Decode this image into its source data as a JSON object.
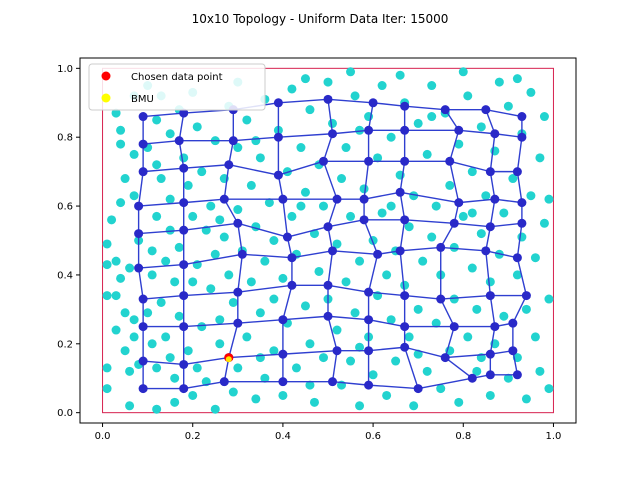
{
  "chart_data": {
    "type": "scatter",
    "title": "10x10 Topology - Uniform Data Iter: 15000",
    "xlabel": "",
    "ylabel": "",
    "xlim": [
      -0.05,
      1.05
    ],
    "ylim": [
      -0.03,
      1.03
    ],
    "x_ticks": [
      "0.0",
      "0.2",
      "0.4",
      "0.6",
      "0.8",
      "1.0"
    ],
    "y_ticks": [
      "0.0",
      "0.2",
      "0.4",
      "0.6",
      "0.8",
      "1.0"
    ],
    "grid": false,
    "legend_position": "top-left",
    "legend": [
      {
        "label": "Chosen data point",
        "color": "#ff0000"
      },
      {
        "label": "BMU",
        "color": "#ffff00"
      }
    ],
    "colors": {
      "data_points": "#22d3cf",
      "neurons": "#2929c8",
      "edges": "#2f3fd0",
      "boundary": "#d6204f",
      "chosen": "#ff0000",
      "bmu": "#ffff00"
    },
    "data_boundary": {
      "x": [
        0,
        1
      ],
      "y": [
        0,
        1
      ]
    },
    "chosen_point": [
      0.28,
      0.16
    ],
    "bmu_point": [
      0.28,
      0.155
    ],
    "neuron_grid": [
      [
        [
          0.09,
          0.07
        ],
        [
          0.18,
          0.07
        ],
        [
          0.27,
          0.09
        ],
        [
          0.4,
          0.09
        ],
        [
          0.51,
          0.09
        ],
        [
          0.59,
          0.08
        ],
        [
          0.7,
          0.07
        ],
        [
          0.82,
          0.1
        ],
        [
          0.86,
          0.11
        ],
        [
          0.92,
          0.11
        ]
      ],
      [
        [
          0.09,
          0.15
        ],
        [
          0.18,
          0.14
        ],
        [
          0.28,
          0.16
        ],
        [
          0.4,
          0.17
        ],
        [
          0.52,
          0.18
        ],
        [
          0.59,
          0.18
        ],
        [
          0.67,
          0.19
        ],
        [
          0.76,
          0.16
        ],
        [
          0.86,
          0.17
        ],
        [
          0.91,
          0.18
        ]
      ],
      [
        [
          0.09,
          0.25
        ],
        [
          0.18,
          0.25
        ],
        [
          0.3,
          0.26
        ],
        [
          0.4,
          0.27
        ],
        [
          0.5,
          0.28
        ],
        [
          0.59,
          0.27
        ],
        [
          0.67,
          0.25
        ],
        [
          0.78,
          0.25
        ],
        [
          0.87,
          0.25
        ],
        [
          0.91,
          0.26
        ]
      ],
      [
        [
          0.09,
          0.33
        ],
        [
          0.18,
          0.34
        ],
        [
          0.3,
          0.35
        ],
        [
          0.42,
          0.37
        ],
        [
          0.5,
          0.37
        ],
        [
          0.59,
          0.35
        ],
        [
          0.67,
          0.34
        ],
        [
          0.75,
          0.33
        ],
        [
          0.86,
          0.34
        ],
        [
          0.94,
          0.34
        ]
      ],
      [
        [
          0.08,
          0.42
        ],
        [
          0.18,
          0.43
        ],
        [
          0.31,
          0.46
        ],
        [
          0.42,
          0.45
        ],
        [
          0.51,
          0.47
        ],
        [
          0.61,
          0.46
        ],
        [
          0.66,
          0.47
        ],
        [
          0.75,
          0.48
        ],
        [
          0.85,
          0.47
        ],
        [
          0.92,
          0.45
        ]
      ],
      [
        [
          0.08,
          0.52
        ],
        [
          0.18,
          0.53
        ],
        [
          0.3,
          0.55
        ],
        [
          0.41,
          0.51
        ],
        [
          0.5,
          0.54
        ],
        [
          0.58,
          0.56
        ],
        [
          0.67,
          0.56
        ],
        [
          0.78,
          0.55
        ],
        [
          0.86,
          0.54
        ],
        [
          0.93,
          0.55
        ]
      ],
      [
        [
          0.08,
          0.6
        ],
        [
          0.18,
          0.61
        ],
        [
          0.27,
          0.62
        ],
        [
          0.4,
          0.62
        ],
        [
          0.52,
          0.62
        ],
        [
          0.58,
          0.62
        ],
        [
          0.66,
          0.64
        ],
        [
          0.79,
          0.61
        ],
        [
          0.87,
          0.62
        ],
        [
          0.93,
          0.61
        ]
      ],
      [
        [
          0.09,
          0.7
        ],
        [
          0.18,
          0.71
        ],
        [
          0.28,
          0.72
        ],
        [
          0.39,
          0.69
        ],
        [
          0.49,
          0.73
        ],
        [
          0.59,
          0.73
        ],
        [
          0.67,
          0.73
        ],
        [
          0.77,
          0.73
        ],
        [
          0.86,
          0.7
        ],
        [
          0.92,
          0.7
        ]
      ],
      [
        [
          0.09,
          0.78
        ],
        [
          0.17,
          0.79
        ],
        [
          0.29,
          0.79
        ],
        [
          0.39,
          0.8
        ],
        [
          0.51,
          0.81
        ],
        [
          0.59,
          0.82
        ],
        [
          0.67,
          0.82
        ],
        [
          0.79,
          0.82
        ],
        [
          0.87,
          0.81
        ],
        [
          0.93,
          0.8
        ]
      ],
      [
        [
          0.09,
          0.86
        ],
        [
          0.18,
          0.87
        ],
        [
          0.29,
          0.88
        ],
        [
          0.39,
          0.9
        ],
        [
          0.5,
          0.91
        ],
        [
          0.6,
          0.9
        ],
        [
          0.67,
          0.89
        ],
        [
          0.76,
          0.88
        ],
        [
          0.85,
          0.88
        ],
        [
          0.93,
          0.86
        ]
      ]
    ],
    "data_points": [
      [
        0.01,
        0.49
      ],
      [
        0.01,
        0.43
      ],
      [
        0.01,
        0.34
      ],
      [
        0.01,
        0.13
      ],
      [
        0.01,
        0.07
      ],
      [
        0.02,
        0.56
      ],
      [
        0.03,
        0.24
      ],
      [
        0.03,
        0.34
      ],
      [
        0.03,
        0.44
      ],
      [
        0.03,
        0.87
      ],
      [
        0.04,
        0.39
      ],
      [
        0.04,
        0.61
      ],
      [
        0.04,
        0.78
      ],
      [
        0.04,
        0.82
      ],
      [
        0.05,
        0.18
      ],
      [
        0.05,
        0.29
      ],
      [
        0.05,
        0.68
      ],
      [
        0.06,
        0.02
      ],
      [
        0.06,
        0.42
      ],
      [
        0.06,
        0.12
      ],
      [
        0.07,
        0.22
      ],
      [
        0.07,
        0.63
      ],
      [
        0.07,
        0.27
      ],
      [
        0.07,
        0.75
      ],
      [
        0.07,
        0.92
      ],
      [
        0.08,
        0.5
      ],
      [
        0.08,
        0.14
      ],
      [
        0.1,
        0.29
      ],
      [
        0.1,
        0.77
      ],
      [
        0.11,
        0.4
      ],
      [
        0.11,
        0.47
      ],
      [
        0.11,
        0.2
      ],
      [
        0.12,
        0.85
      ],
      [
        0.12,
        0.13
      ],
      [
        0.12,
        0.57
      ],
      [
        0.12,
        0.01
      ],
      [
        0.13,
        0.32
      ],
      [
        0.13,
        0.68
      ],
      [
        0.13,
        0.92
      ],
      [
        0.14,
        0.44
      ],
      [
        0.14,
        0.22
      ],
      [
        0.15,
        0.81
      ],
      [
        0.15,
        0.62
      ],
      [
        0.15,
        0.53
      ],
      [
        0.16,
        0.38
      ],
      [
        0.16,
        0.1
      ],
      [
        0.16,
        0.03
      ],
      [
        0.17,
        0.28
      ],
      [
        0.17,
        0.48
      ],
      [
        0.17,
        0.88
      ],
      [
        0.18,
        0.74
      ],
      [
        0.19,
        0.18
      ],
      [
        0.19,
        0.66
      ],
      [
        0.2,
        0.38
      ],
      [
        0.2,
        0.57
      ],
      [
        0.2,
        0.05
      ],
      [
        0.21,
        0.13
      ],
      [
        0.21,
        0.43
      ],
      [
        0.21,
        0.83
      ],
      [
        0.22,
        0.25
      ],
      [
        0.22,
        0.7
      ],
      [
        0.23,
        0.53
      ],
      [
        0.23,
        0.09
      ],
      [
        0.24,
        0.36
      ],
      [
        0.24,
        0.6
      ],
      [
        0.25,
        0.79
      ],
      [
        0.25,
        0.46
      ],
      [
        0.25,
        0.01
      ],
      [
        0.26,
        0.2
      ],
      [
        0.26,
        0.27
      ],
      [
        0.27,
        0.68
      ],
      [
        0.27,
        0.51
      ],
      [
        0.28,
        0.4
      ],
      [
        0.28,
        0.89
      ],
      [
        0.29,
        0.06
      ],
      [
        0.29,
        0.32
      ],
      [
        0.3,
        0.59
      ],
      [
        0.3,
        0.77
      ],
      [
        0.3,
        0.13
      ],
      [
        0.31,
        0.47
      ],
      [
        0.32,
        0.22
      ],
      [
        0.32,
        0.85
      ],
      [
        0.33,
        0.38
      ],
      [
        0.33,
        0.66
      ],
      [
        0.34,
        0.54
      ],
      [
        0.34,
        0.04
      ],
      [
        0.35,
        0.29
      ],
      [
        0.35,
        0.74
      ],
      [
        0.36,
        0.1
      ],
      [
        0.36,
        0.44
      ],
      [
        0.36,
        0.91
      ],
      [
        0.37,
        0.61
      ],
      [
        0.38,
        0.18
      ],
      [
        0.38,
        0.33
      ],
      [
        0.38,
        0.5
      ],
      [
        0.39,
        0.82
      ],
      [
        0.4,
        0.05
      ],
      [
        0.4,
        0.39
      ],
      [
        0.41,
        0.7
      ],
      [
        0.41,
        0.26
      ],
      [
        0.42,
        0.57
      ],
      [
        0.42,
        0.94
      ],
      [
        0.43,
        0.13
      ],
      [
        0.43,
        0.46
      ],
      [
        0.44,
        0.77
      ],
      [
        0.45,
        0.31
      ],
      [
        0.45,
        0.64
      ],
      [
        0.46,
        0.2
      ],
      [
        0.46,
        0.88
      ],
      [
        0.47,
        0.52
      ],
      [
        0.47,
        0.03
      ],
      [
        0.48,
        0.41
      ],
      [
        0.48,
        0.72
      ],
      [
        0.49,
        0.16
      ],
      [
        0.49,
        0.6
      ],
      [
        0.5,
        0.33
      ],
      [
        0.5,
        0.96
      ],
      [
        0.51,
        0.84
      ],
      [
        0.52,
        0.24
      ],
      [
        0.52,
        0.49
      ],
      [
        0.53,
        0.08
      ],
      [
        0.53,
        0.68
      ],
      [
        0.54,
        0.38
      ],
      [
        0.54,
        0.77
      ],
      [
        0.55,
        0.15
      ],
      [
        0.55,
        0.57
      ],
      [
        0.56,
        0.29
      ],
      [
        0.56,
        0.92
      ],
      [
        0.57,
        0.44
      ],
      [
        0.57,
        0.02
      ],
      [
        0.58,
        0.65
      ],
      [
        0.59,
        0.22
      ],
      [
        0.59,
        0.86
      ],
      [
        0.6,
        0.5
      ],
      [
        0.6,
        0.11
      ],
      [
        0.61,
        0.34
      ],
      [
        0.61,
        0.74
      ],
      [
        0.62,
        0.58
      ],
      [
        0.62,
        0.95
      ],
      [
        0.63,
        0.4
      ],
      [
        0.63,
        0.05
      ],
      [
        0.64,
        0.27
      ],
      [
        0.64,
        0.8
      ],
      [
        0.65,
        0.47
      ],
      [
        0.65,
        0.15
      ],
      [
        0.66,
        0.69
      ],
      [
        0.67,
        0.37
      ],
      [
        0.67,
        0.9
      ],
      [
        0.68,
        0.22
      ],
      [
        0.68,
        0.54
      ],
      [
        0.69,
        0.02
      ],
      [
        0.69,
        0.63
      ],
      [
        0.7,
        0.3
      ],
      [
        0.7,
        0.84
      ],
      [
        0.71,
        0.44
      ],
      [
        0.72,
        0.12
      ],
      [
        0.72,
        0.75
      ],
      [
        0.73,
        0.51
      ],
      [
        0.73,
        0.95
      ],
      [
        0.74,
        0.26
      ],
      [
        0.74,
        0.6
      ],
      [
        0.75,
        0.07
      ],
      [
        0.75,
        0.4
      ],
      [
        0.76,
        0.87
      ],
      [
        0.77,
        0.18
      ],
      [
        0.77,
        0.66
      ],
      [
        0.78,
        0.33
      ],
      [
        0.78,
        0.48
      ],
      [
        0.79,
        0.78
      ],
      [
        0.79,
        0.03
      ],
      [
        0.8,
        0.57
      ],
      [
        0.81,
        0.22
      ],
      [
        0.81,
        0.92
      ],
      [
        0.82,
        0.42
      ],
      [
        0.82,
        0.7
      ],
      [
        0.83,
        0.12
      ],
      [
        0.83,
        0.3
      ],
      [
        0.84,
        0.83
      ],
      [
        0.84,
        0.52
      ],
      [
        0.85,
        0.63
      ],
      [
        0.86,
        0.05
      ],
      [
        0.86,
        0.38
      ],
      [
        0.87,
        0.76
      ],
      [
        0.87,
        0.2
      ],
      [
        0.88,
        0.96
      ],
      [
        0.88,
        0.46
      ],
      [
        0.89,
        0.58
      ],
      [
        0.89,
        0.28
      ],
      [
        0.9,
        0.89
      ],
      [
        0.9,
        0.1
      ],
      [
        0.91,
        0.68
      ],
      [
        0.92,
        0.4
      ],
      [
        0.92,
        0.16
      ],
      [
        0.93,
        0.51
      ],
      [
        0.93,
        0.81
      ],
      [
        0.94,
        0.04
      ],
      [
        0.94,
        0.3
      ],
      [
        0.95,
        0.63
      ],
      [
        0.95,
        0.93
      ],
      [
        0.96,
        0.22
      ],
      [
        0.96,
        0.45
      ],
      [
        0.97,
        0.74
      ],
      [
        0.97,
        0.12
      ],
      [
        0.98,
        0.55
      ],
      [
        0.98,
        0.86
      ],
      [
        0.99,
        0.33
      ],
      [
        0.99,
        0.07
      ],
      [
        0.99,
        0.62
      ],
      [
        0.1,
        0.95
      ],
      [
        0.2,
        0.93
      ],
      [
        0.3,
        0.96
      ],
      [
        0.45,
        0.97
      ],
      [
        0.55,
        0.99
      ],
      [
        0.66,
        0.98
      ],
      [
        0.8,
        0.99
      ],
      [
        0.92,
        0.97
      ],
      [
        0.15,
        0.16
      ],
      [
        0.35,
        0.16
      ],
      [
        0.46,
        0.08
      ],
      [
        0.57,
        0.19
      ],
      [
        0.7,
        0.17
      ],
      [
        0.84,
        0.16
      ],
      [
        0.26,
        0.56
      ],
      [
        0.44,
        0.6
      ],
      [
        0.64,
        0.6
      ],
      [
        0.82,
        0.58
      ],
      [
        0.12,
        0.72
      ],
      [
        0.34,
        0.79
      ],
      [
        0.57,
        0.82
      ],
      [
        0.73,
        0.86
      ]
    ]
  }
}
